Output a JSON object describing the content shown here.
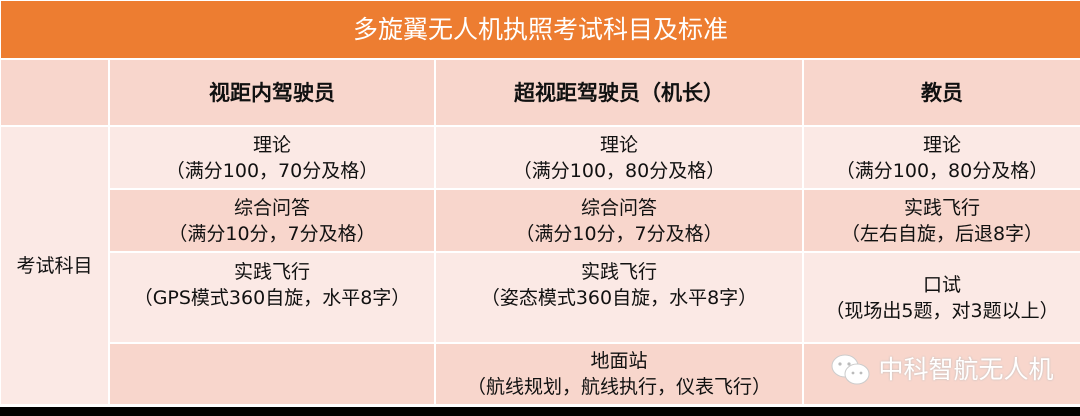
{
  "title": "多旋翼无人机执照考试科目及标准",
  "headers": [
    "",
    "视距内驾驶员",
    "超视距驾驶员（机长）",
    "教员"
  ],
  "row_label": "考试科目",
  "rows": [
    [
      {
        "name": "理论",
        "detail": "（满分100，70分及格）"
      },
      {
        "name": "理论",
        "detail": "（满分100，80分及格）"
      },
      {
        "name": "理论",
        "detail": "（满分100，80分及格）"
      }
    ],
    [
      {
        "name": "综合问答",
        "detail": "（满分10分，7分及格）"
      },
      {
        "name": "综合问答",
        "detail": "（满分10分，7分及格）"
      },
      {
        "name": "实践飞行",
        "detail": "（左右自旋，后退8字）"
      }
    ],
    [
      {
        "name": "实践飞行",
        "detail": "（GPS模式360自旋，水平8字）"
      },
      {
        "name": "实践飞行",
        "detail": "（姿态模式360自旋，水平8字）"
      },
      {
        "name": "口试",
        "detail": "（现场出5题，对3题以上）"
      }
    ],
    [
      {
        "name": "",
        "detail": ""
      },
      {
        "name": "地面站",
        "detail": "（航线规划，航线执行，仪表飞行）"
      },
      {
        "name": "",
        "detail": ""
      }
    ]
  ],
  "watermark": {
    "text": "中科智航无人机",
    "icon": "wechat-icon"
  },
  "colors": {
    "title_bg": "#ed7d31",
    "dark_row": "#f8d6cc",
    "light_row": "#fbe9e5"
  }
}
